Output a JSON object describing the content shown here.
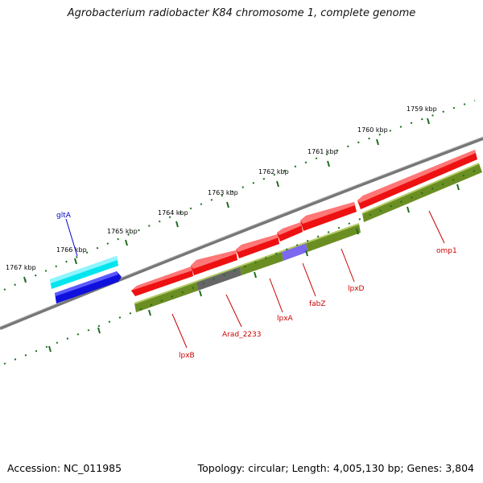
{
  "title": "Agrobacterium radiobacter K84 chromosome 1, complete genome",
  "accession": "Accession: NC_011985",
  "summary": "Topology: circular; Length: 4,005,130 bp; Genes: 3,804",
  "colors": {
    "backbone": "#777777",
    "ruler": "#1e6e1e",
    "forward_gene_1": "#00e5ee",
    "forward_gene_2": "#1010dd",
    "reverse_gene": "#ee1111",
    "reverse_cds": "#6b8e23",
    "grey_cds": "#666666",
    "purple_cds": "#7b68ee",
    "forward_label": "#0000cc",
    "reverse_label": "#cc0000"
  },
  "kbp_labels": [
    "1759 kbp",
    "1760 kbp",
    "1761 kbp",
    "1762 kbp",
    "1763 kbp",
    "1764 kbp",
    "1765 kbp",
    "1766 kbp",
    "1767 kbp"
  ],
  "forward_genes": [
    {
      "label": "gltA",
      "label_color": "forward_label"
    }
  ],
  "reverse_genes": [
    {
      "label": "lpxB"
    },
    {
      "label": "Arad_2233"
    },
    {
      "label": "lpxA"
    },
    {
      "label": "fabZ"
    },
    {
      "label": "lpxD"
    },
    {
      "label": "omp1"
    }
  ]
}
